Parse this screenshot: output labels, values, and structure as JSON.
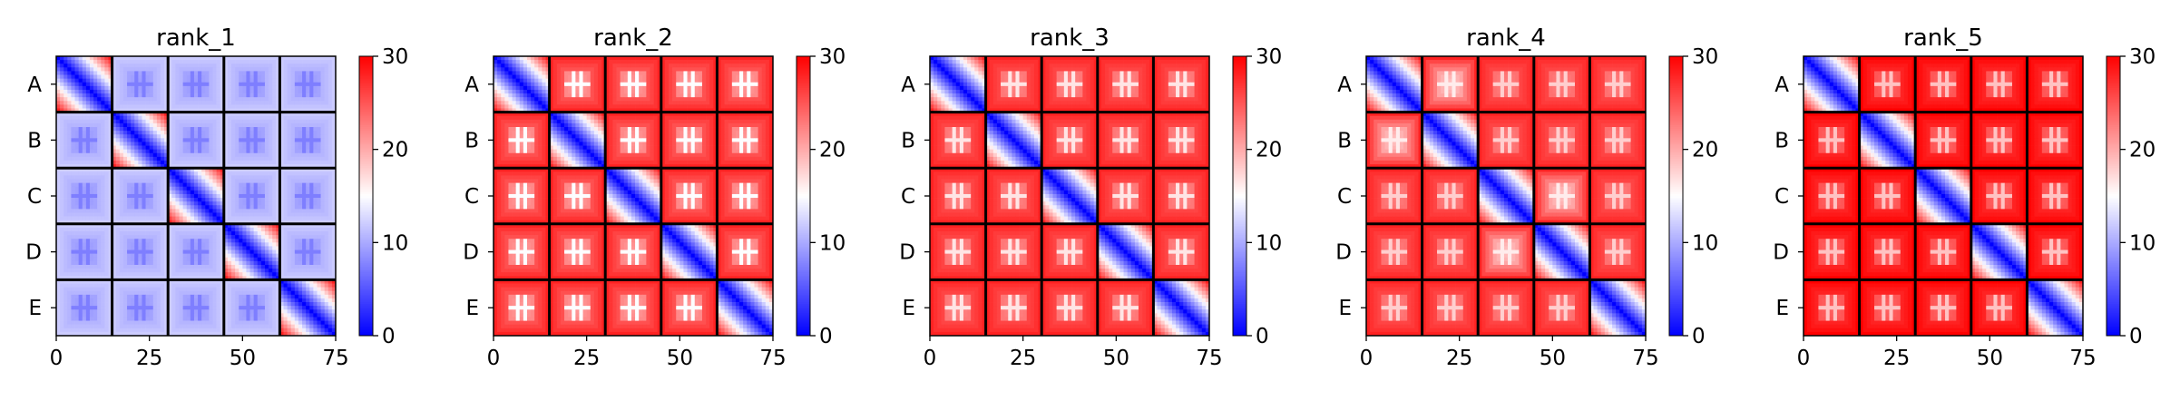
{
  "chart_data": [
    {
      "type": "heatmap",
      "title": "rank_1",
      "x_ticks": [
        0,
        25,
        50,
        75
      ],
      "y_tick_labels": [
        "A",
        "B",
        "C",
        "D",
        "E"
      ],
      "xlim": [
        0,
        75
      ],
      "grid_size": 75,
      "block_size": 15,
      "colorbar": {
        "range": [
          0,
          30
        ],
        "ticks": [
          0,
          10,
          20,
          30
        ],
        "colormap": "bwr",
        "colors": [
          "#0000ff",
          "#ffffff",
          "#ff0000"
        ]
      },
      "diagonal_min": 0,
      "offdiag_level": 10,
      "edge_level": 12,
      "texture_level": 6,
      "block_levels": [
        [
          0,
          10,
          10,
          10,
          10
        ],
        [
          10,
          0,
          10,
          10,
          10
        ],
        [
          10,
          10,
          0,
          10,
          10
        ],
        [
          10,
          10,
          10,
          0,
          10
        ],
        [
          10,
          10,
          10,
          10,
          0
        ]
      ]
    },
    {
      "type": "heatmap",
      "title": "rank_2",
      "x_ticks": [
        0,
        25,
        50,
        75
      ],
      "y_tick_labels": [
        "A",
        "B",
        "C",
        "D",
        "E"
      ],
      "xlim": [
        0,
        75
      ],
      "grid_size": 75,
      "block_size": 15,
      "colorbar": {
        "range": [
          0,
          30
        ],
        "ticks": [
          0,
          10,
          20,
          30
        ],
        "colormap": "bwr",
        "colors": [
          "#0000ff",
          "#ffffff",
          "#ff0000"
        ]
      },
      "diagonal_min": 0,
      "offdiag_level": 24,
      "edge_level": 28,
      "texture_level": 10,
      "block_levels": [
        [
          0,
          24,
          24,
          24,
          24
        ],
        [
          24,
          0,
          24,
          24,
          24
        ],
        [
          24,
          24,
          0,
          24,
          24
        ],
        [
          24,
          24,
          24,
          0,
          24
        ],
        [
          24,
          24,
          24,
          24,
          0
        ]
      ]
    },
    {
      "type": "heatmap",
      "title": "rank_3",
      "x_ticks": [
        0,
        25,
        50,
        75
      ],
      "y_tick_labels": [
        "A",
        "B",
        "C",
        "D",
        "E"
      ],
      "xlim": [
        0,
        75
      ],
      "grid_size": 75,
      "block_size": 15,
      "colorbar": {
        "range": [
          0,
          30
        ],
        "ticks": [
          0,
          10,
          20,
          30
        ],
        "colormap": "bwr",
        "colors": [
          "#0000ff",
          "#ffffff",
          "#ff0000"
        ]
      },
      "diagonal_min": 0,
      "offdiag_level": 25,
      "edge_level": 28,
      "texture_level": 12,
      "block_levels": [
        [
          0,
          25,
          25,
          25,
          25
        ],
        [
          25,
          0,
          25,
          25,
          25
        ],
        [
          25,
          25,
          0,
          25,
          25
        ],
        [
          25,
          25,
          25,
          0,
          25
        ],
        [
          25,
          25,
          25,
          25,
          0
        ]
      ]
    },
    {
      "type": "heatmap",
      "title": "rank_4",
      "x_ticks": [
        0,
        25,
        50,
        75
      ],
      "y_tick_labels": [
        "A",
        "B",
        "C",
        "D",
        "E"
      ],
      "xlim": [
        0,
        75
      ],
      "grid_size": 75,
      "block_size": 15,
      "colorbar": {
        "range": [
          0,
          30
        ],
        "ticks": [
          0,
          10,
          20,
          30
        ],
        "colormap": "bwr",
        "colors": [
          "#0000ff",
          "#ffffff",
          "#ff0000"
        ]
      },
      "diagonal_min": 0,
      "offdiag_level": 25,
      "edge_level": 28,
      "texture_level": 14,
      "block_levels": [
        [
          0,
          20,
          25,
          25,
          25
        ],
        [
          20,
          0,
          25,
          25,
          25
        ],
        [
          25,
          25,
          0,
          20,
          25
        ],
        [
          25,
          25,
          20,
          0,
          25
        ],
        [
          25,
          25,
          25,
          25,
          0
        ]
      ]
    },
    {
      "type": "heatmap",
      "title": "rank_5",
      "x_ticks": [
        0,
        25,
        50,
        75
      ],
      "y_tick_labels": [
        "A",
        "B",
        "C",
        "D",
        "E"
      ],
      "xlim": [
        0,
        75
      ],
      "grid_size": 75,
      "block_size": 15,
      "colorbar": {
        "range": [
          0,
          30
        ],
        "ticks": [
          0,
          10,
          20,
          30
        ],
        "colormap": "bwr",
        "colors": [
          "#0000ff",
          "#ffffff",
          "#ff0000"
        ]
      },
      "diagonal_min": 0,
      "offdiag_level": 27,
      "edge_level": 30,
      "texture_level": 14,
      "block_levels": [
        [
          0,
          27,
          27,
          27,
          27
        ],
        [
          27,
          0,
          27,
          27,
          27
        ],
        [
          27,
          27,
          0,
          27,
          27
        ],
        [
          27,
          27,
          27,
          0,
          27
        ],
        [
          27,
          27,
          27,
          27,
          0
        ]
      ]
    }
  ]
}
